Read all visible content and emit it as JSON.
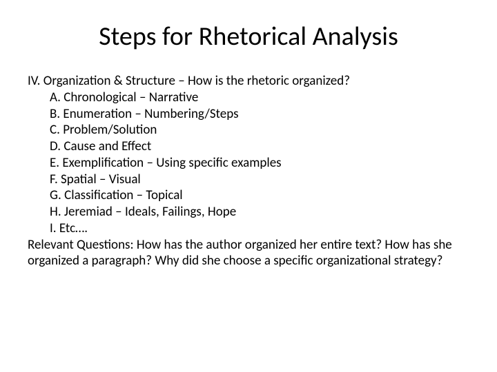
{
  "title": "Steps for Rhetorical Analysis",
  "heading": "IV. Organization & Structure – How is the rhetoric organized?",
  "items": [
    "A. Chronological – Narrative",
    "B. Enumeration – Numbering/Steps",
    "C. Problem/Solution",
    "D. Cause and Effect",
    "E. Exemplification – Using specific examples",
    "F. Spatial – Visual",
    "G. Classification – Topical",
    "H. Jeremiad – Ideals, Failings, Hope",
    "I. Etc…."
  ],
  "questions": "Relevant Questions: How has the author organized her entire text? How has she organized a paragraph? Why did she choose a specific organizational strategy?",
  "style": {
    "bg": "#ffffff",
    "text_color": "#000000",
    "title_fontsize": 38,
    "body_fontsize": 19,
    "font_family": "Calibri, Arial, sans-serif"
  }
}
